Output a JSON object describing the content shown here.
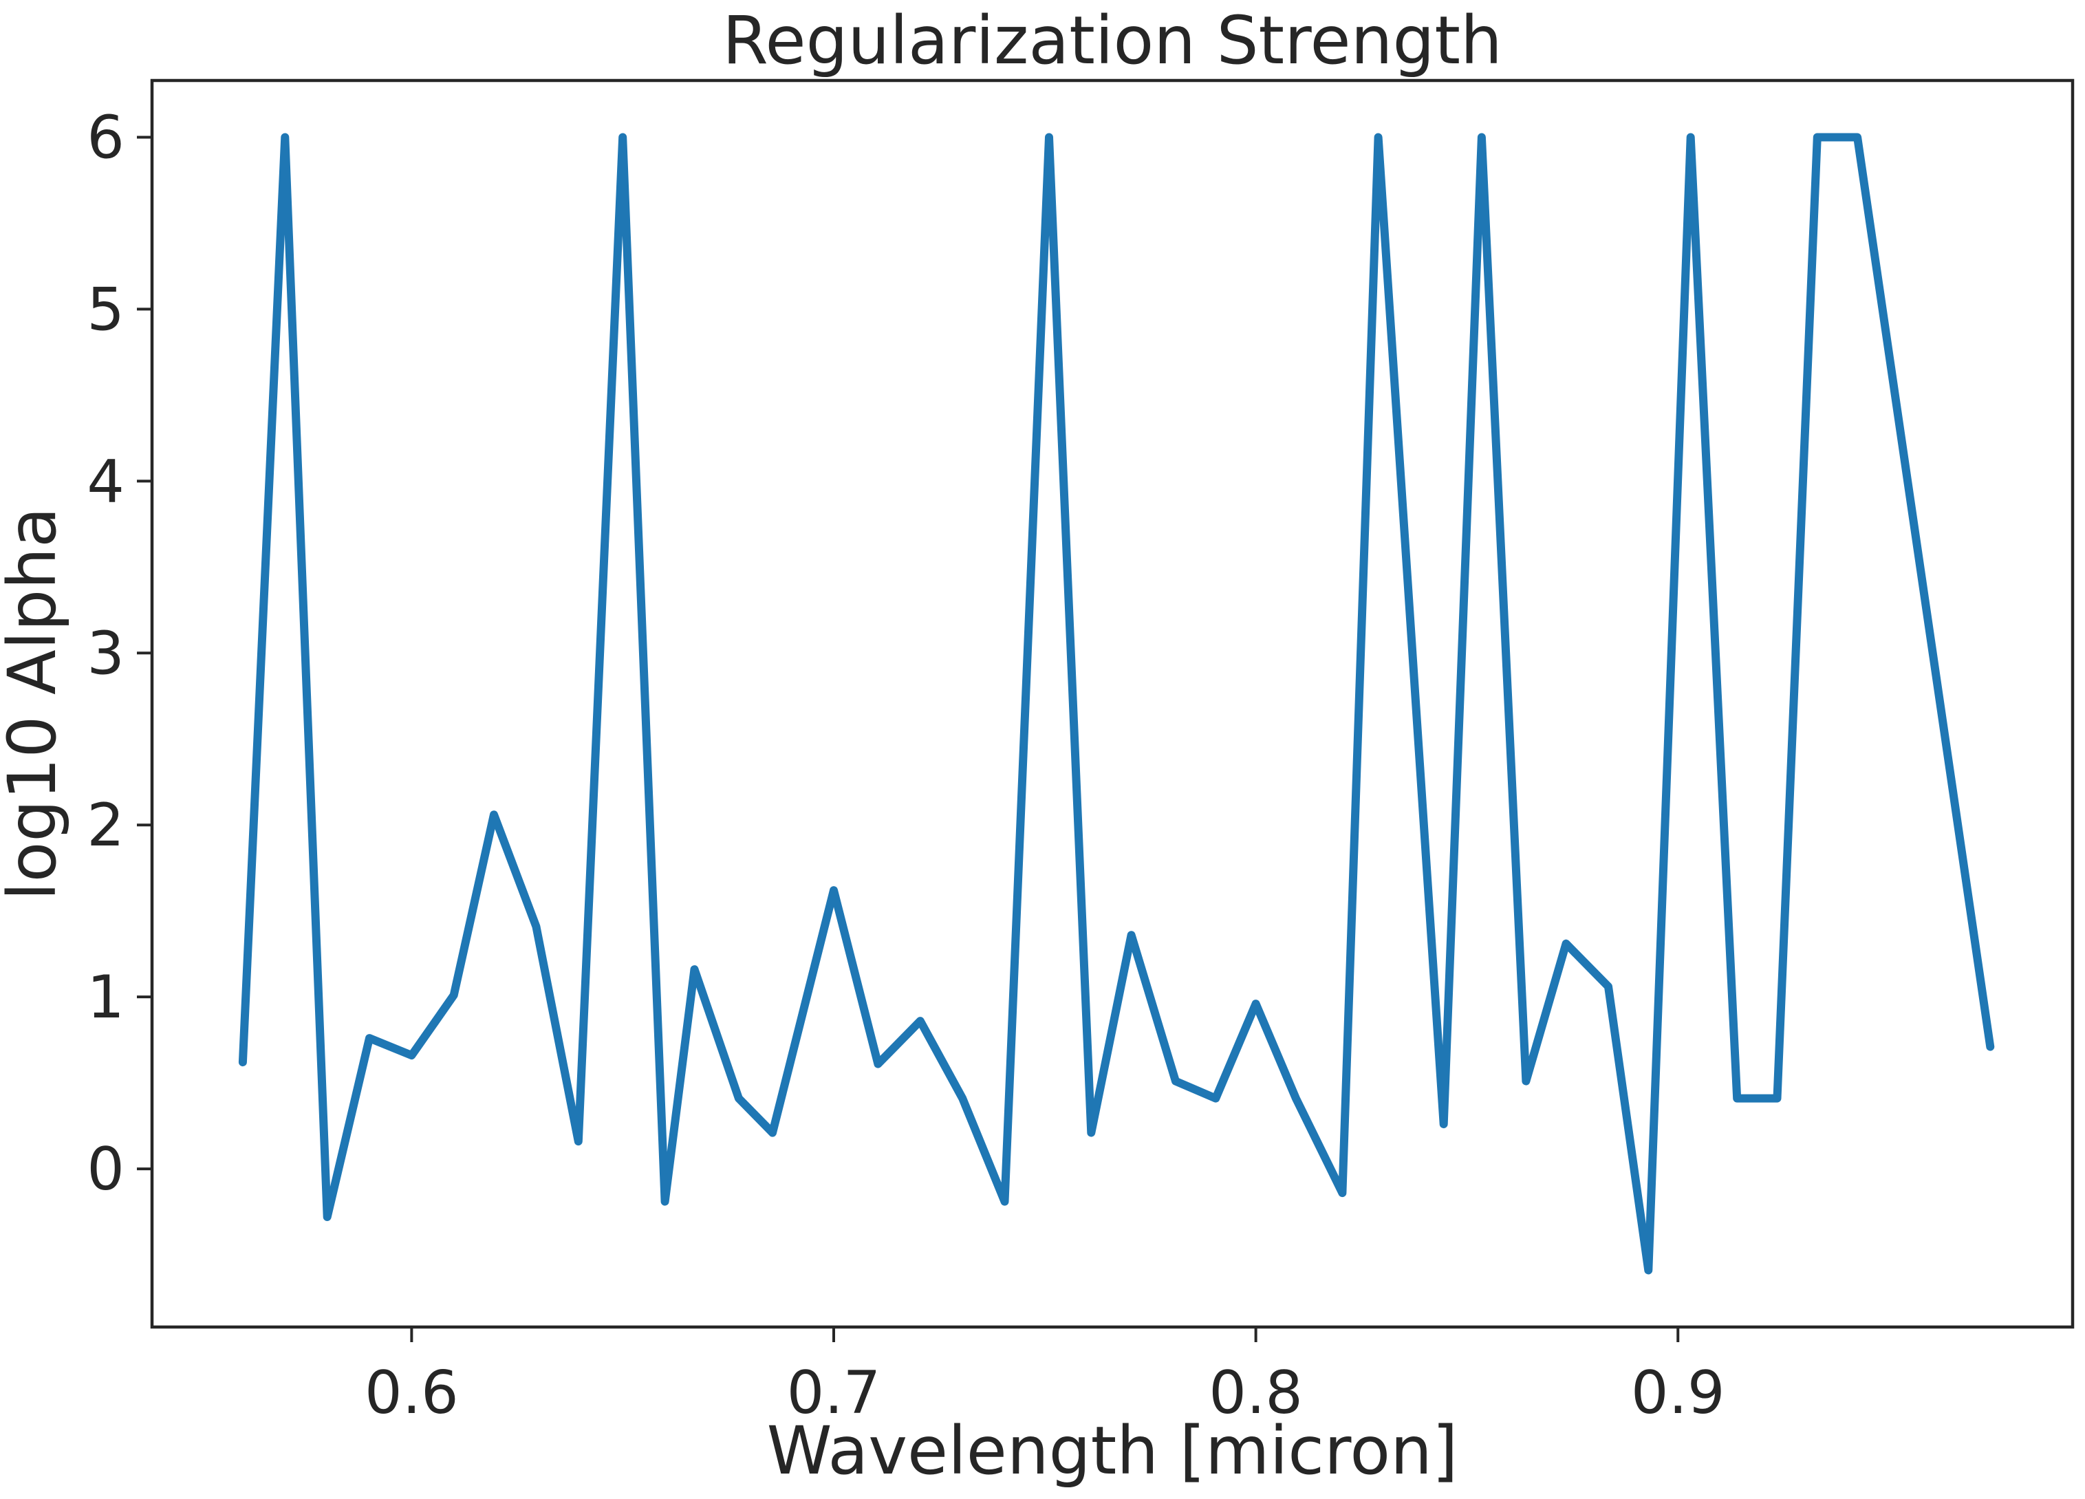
{
  "chart_data": {
    "type": "line",
    "title": "Regularization Strength",
    "xlabel": "Wavelength [micron]",
    "ylabel": "log10 Alpha",
    "xlim": [
      0.5385,
      0.9935
    ],
    "ylim": [
      -0.92,
      6.33
    ],
    "grid": false,
    "xticks": [
      {
        "value": 0.6,
        "label": "0.6"
      },
      {
        "value": 0.7,
        "label": "0.7"
      },
      {
        "value": 0.8,
        "label": "0.8"
      },
      {
        "value": 0.9,
        "label": "0.9"
      }
    ],
    "yticks": [
      {
        "value": 0,
        "label": "0"
      },
      {
        "value": 1,
        "label": "1"
      },
      {
        "value": 2,
        "label": "2"
      },
      {
        "value": 3,
        "label": "3"
      },
      {
        "value": 4,
        "label": "4"
      },
      {
        "value": 5,
        "label": "5"
      },
      {
        "value": 6,
        "label": "6"
      }
    ],
    "series": [
      {
        "color": "#1f77b4",
        "x": [
          0.56,
          0.57,
          0.58,
          0.59,
          0.6,
          0.61,
          0.6195,
          0.6295,
          0.6395,
          0.65,
          0.66,
          0.667,
          0.6775,
          0.6855,
          0.7,
          0.7105,
          0.7205,
          0.7305,
          0.7405,
          0.751,
          0.761,
          0.7705,
          0.781,
          0.7905,
          0.8,
          0.8095,
          0.8205,
          0.829,
          0.8445,
          0.8535,
          0.864,
          0.8735,
          0.8835,
          0.893,
          0.903,
          0.914,
          0.9235,
          0.933,
          0.9425,
          0.974
        ],
        "y": [
          0.62,
          6.0,
          -0.28,
          0.76,
          0.66,
          1.01,
          2.06,
          1.41,
          0.16,
          6.0,
          -0.19,
          1.16,
          0.41,
          0.21,
          1.62,
          0.61,
          0.86,
          0.41,
          -0.19,
          6.0,
          0.21,
          1.36,
          0.51,
          0.41,
          0.96,
          0.41,
          -0.14,
          6.0,
          0.26,
          6.0,
          0.51,
          1.31,
          1.06,
          -0.59,
          6.0,
          0.41,
          0.41,
          6.0,
          6.0,
          0.71
        ]
      }
    ]
  }
}
